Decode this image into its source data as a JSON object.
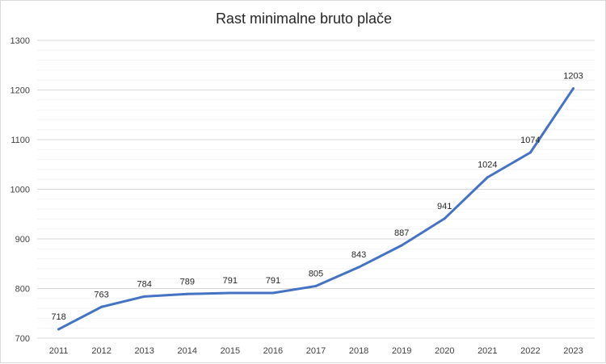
{
  "chart_data": {
    "type": "line",
    "title": "Rast minimalne bruto plače",
    "xlabel": "",
    "ylabel": "",
    "categories": [
      "2011",
      "2012",
      "2013",
      "2014",
      "2015",
      "2016",
      "2017",
      "2018",
      "2019",
      "2020",
      "2021",
      "2022",
      "2023"
    ],
    "series": [
      {
        "values": [
          718,
          763,
          784,
          789,
          791,
          791,
          805,
          843,
          887,
          941,
          1024,
          1074,
          1203
        ]
      }
    ],
    "ylim": [
      700,
      1300
    ],
    "y_ticks": [
      "700",
      "800",
      "900",
      "1000",
      "1100",
      "1200",
      "1300"
    ],
    "grid": true,
    "minor_grid": true,
    "legend": "none",
    "data_labels": true,
    "line_color": "#4472c4",
    "grid_color": "#d9d9d9",
    "minor_grid_color": "#f2f2f2"
  }
}
